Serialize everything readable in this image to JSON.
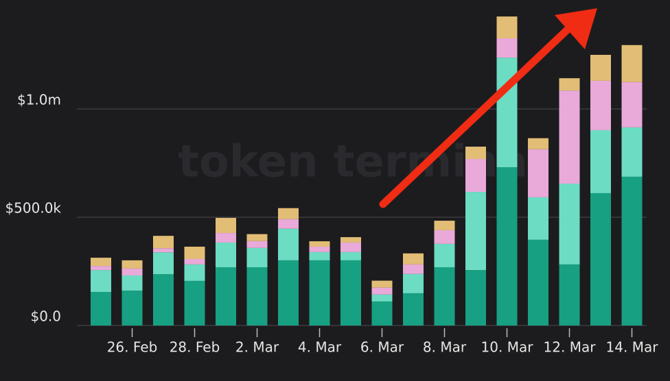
{
  "chart_data": {
    "type": "stacked_bar",
    "watermark": "token terminal",
    "categories": [
      null,
      "26. Feb",
      null,
      "28. Feb",
      null,
      "2. Mar",
      null,
      "4. Mar",
      null,
      "6. Mar",
      null,
      "8. Mar",
      null,
      "10. Mar",
      null,
      "12. Mar",
      null,
      "14. Mar"
    ],
    "series": [
      {
        "color": "#17a082",
        "values": [
          155000,
          161000,
          237000,
          206000,
          269000,
          269000,
          301000,
          301000,
          301000,
          111000,
          149000,
          269000,
          256000,
          731000,
          396000,
          282000,
          611000,
          687000
        ]
      },
      {
        "color": "#6cdcc2",
        "values": [
          101000,
          70000,
          101000,
          76000,
          114000,
          89000,
          146000,
          38000,
          38000,
          32000,
          89000,
          108000,
          361000,
          506000,
          196000,
          373000,
          291000,
          228000
        ]
      },
      {
        "color": "#e9a9d9",
        "values": [
          19000,
          32000,
          19000,
          25000,
          44000,
          32000,
          44000,
          25000,
          44000,
          32000,
          44000,
          63000,
          152000,
          89000,
          222000,
          430000,
          228000,
          209000
        ]
      },
      {
        "color": "#e2bd76",
        "values": [
          38000,
          38000,
          57000,
          57000,
          70000,
          32000,
          51000,
          25000,
          25000,
          32000,
          51000,
          44000,
          57000,
          101000,
          51000,
          57000,
          120000,
          171000
        ]
      }
    ],
    "ylim": [
      0,
      1500000
    ],
    "yticks": [
      {
        "value": 0,
        "label": "$0.0"
      },
      {
        "value": 500000,
        "label": "$500.0k"
      },
      {
        "value": 1000000,
        "label": "$1.0m"
      }
    ],
    "grid": true
  }
}
